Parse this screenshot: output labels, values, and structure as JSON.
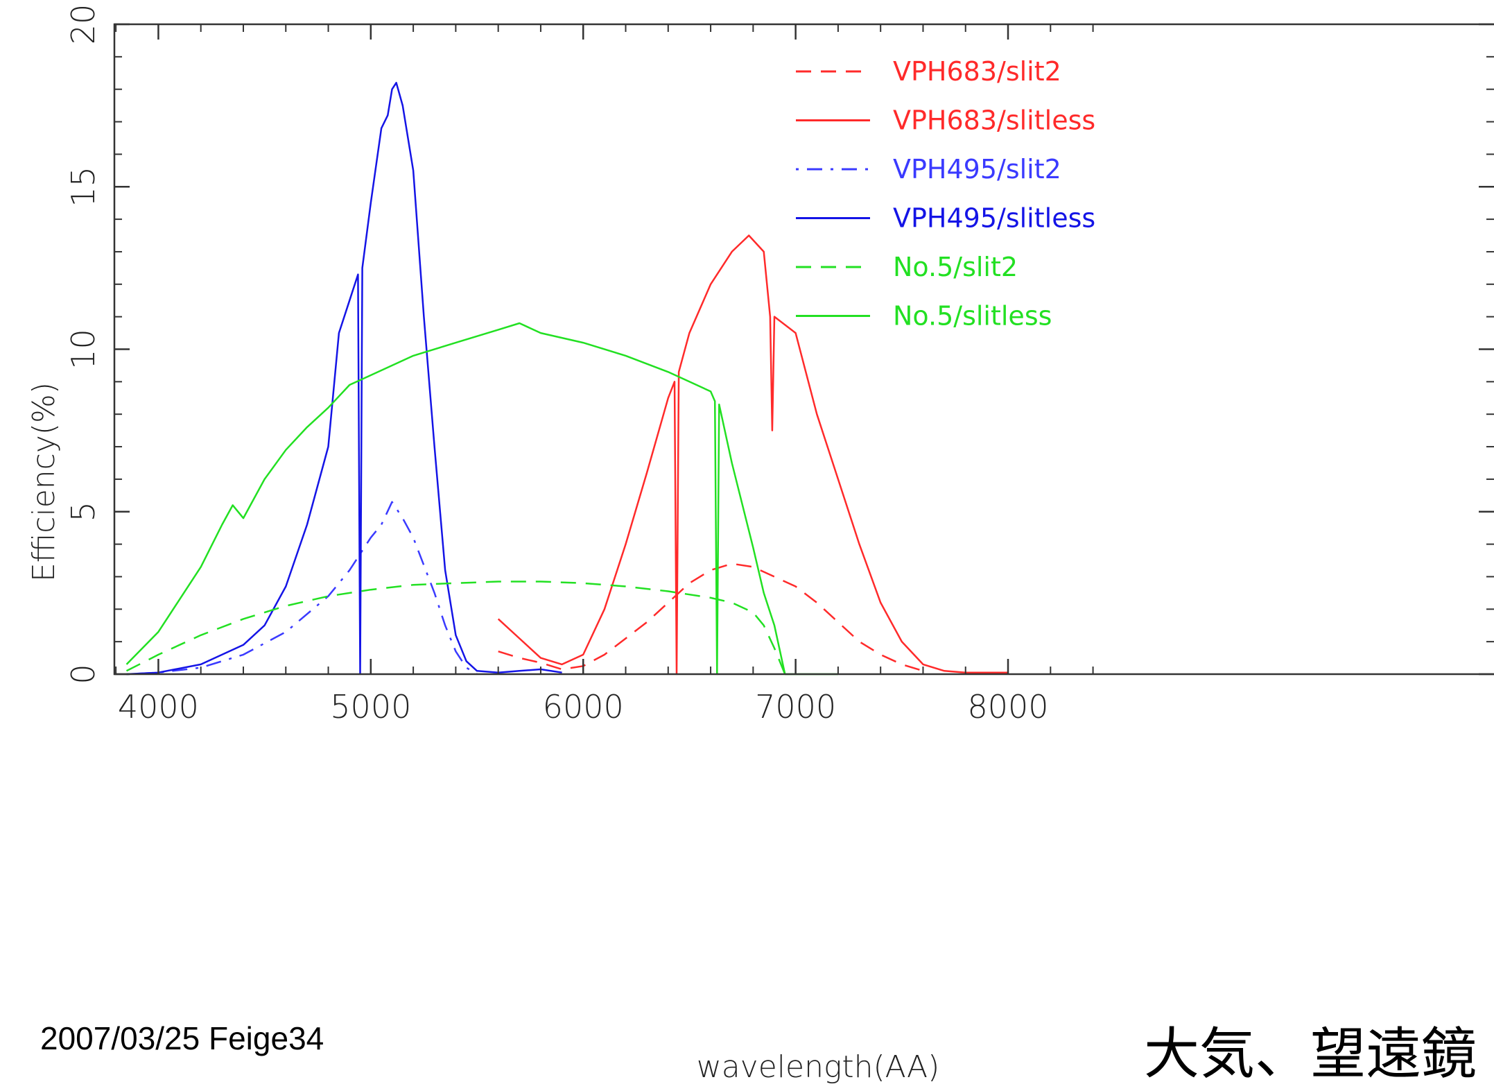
{
  "footer": {
    "date_label": "2007/03/25 Feige34",
    "jp_caption": "大気、望遠鏡"
  },
  "chart_data": {
    "type": "line",
    "xlabel": "wavelength(AA)",
    "ylabel": "Efficiency(%)",
    "xlim": [
      3800,
      8500
    ],
    "ylim": [
      0,
      20
    ],
    "xticks": [
      4000,
      5000,
      6000,
      7000,
      8000
    ],
    "yticks": [
      0,
      5,
      10,
      15,
      20
    ],
    "grid": false,
    "legend_position": "top-right",
    "series": [
      {
        "name": "VPH683/slit2",
        "color": "#ff2a2a",
        "dash": "dashed",
        "x": [
          5600,
          5700,
          5800,
          5850,
          5900,
          6000,
          6100,
          6200,
          6300,
          6400,
          6500,
          6600,
          6700,
          6800,
          6900,
          7000,
          7100,
          7200,
          7300,
          7400,
          7500,
          7600
        ],
        "y": [
          0.7,
          0.5,
          0.35,
          0.25,
          0.15,
          0.25,
          0.6,
          1.1,
          1.6,
          2.2,
          2.8,
          3.2,
          3.4,
          3.3,
          3.0,
          2.7,
          2.2,
          1.6,
          1.0,
          0.6,
          0.3,
          0.1
        ]
      },
      {
        "name": "VPH683/slitless",
        "color": "#ff2a2a",
        "dash": "solid",
        "x": [
          5600,
          5700,
          5800,
          5900,
          6000,
          6100,
          6200,
          6300,
          6400,
          6430,
          6440,
          6450,
          6500,
          6600,
          6700,
          6780,
          6850,
          6880,
          6890,
          6900,
          7000,
          7100,
          7200,
          7300,
          7400,
          7500,
          7600,
          7700,
          7800,
          7900,
          8000
        ],
        "y": [
          1.7,
          1.1,
          0.5,
          0.3,
          0.6,
          2.0,
          4.0,
          6.2,
          8.5,
          9.0,
          0.0,
          9.3,
          10.5,
          12.0,
          13.0,
          13.5,
          13.0,
          11.0,
          7.5,
          11.0,
          10.5,
          8.0,
          6.0,
          4.0,
          2.2,
          1.0,
          0.3,
          0.1,
          0.05,
          0.05,
          0.05
        ]
      },
      {
        "name": "VPH495/slit2",
        "color": "#3a3aff",
        "dash": "dashdot",
        "x": [
          3850,
          4000,
          4200,
          4400,
          4600,
          4800,
          4900,
          5000,
          5050,
          5100,
          5150,
          5200,
          5300,
          5350,
          5400,
          5450,
          5500
        ],
        "y": [
          0.0,
          0.05,
          0.2,
          0.6,
          1.3,
          2.4,
          3.2,
          4.2,
          4.6,
          5.3,
          4.8,
          4.2,
          2.5,
          1.5,
          0.7,
          0.2,
          0.0
        ]
      },
      {
        "name": "VPH495/slitless",
        "color": "#1414e6",
        "dash": "solid",
        "x": [
          3850,
          4000,
          4200,
          4400,
          4500,
          4600,
          4700,
          4800,
          4850,
          4900,
          4940,
          4950,
          4960,
          5000,
          5050,
          5080,
          5100,
          5120,
          5150,
          5200,
          5250,
          5300,
          5350,
          5400,
          5450,
          5500,
          5600,
          5700,
          5800,
          5900
        ],
        "y": [
          0.0,
          0.05,
          0.3,
          0.9,
          1.5,
          2.7,
          4.6,
          7.0,
          10.5,
          11.5,
          12.3,
          0.0,
          12.5,
          14.5,
          16.8,
          17.2,
          18.0,
          18.2,
          17.5,
          15.5,
          11.0,
          7.0,
          3.2,
          1.2,
          0.4,
          0.1,
          0.05,
          0.1,
          0.15,
          0.05
        ]
      },
      {
        "name": "No.5/slit2",
        "color": "#22e022",
        "dash": "dashed",
        "x": [
          3850,
          4000,
          4200,
          4400,
          4600,
          4800,
          5000,
          5200,
          5400,
          5600,
          5800,
          6000,
          6200,
          6400,
          6600,
          6700,
          6800,
          6850,
          6900,
          6950
        ],
        "y": [
          0.1,
          0.6,
          1.2,
          1.7,
          2.1,
          2.4,
          2.6,
          2.75,
          2.8,
          2.85,
          2.85,
          2.8,
          2.7,
          2.55,
          2.35,
          2.2,
          1.9,
          1.5,
          0.8,
          0.0
        ]
      },
      {
        "name": "No.5/slitless",
        "color": "#22e022",
        "dash": "solid",
        "x": [
          3850,
          4000,
          4100,
          4200,
          4300,
          4350,
          4400,
          4500,
          4600,
          4700,
          4800,
          4900,
          5000,
          5200,
          5400,
          5600,
          5700,
          5800,
          6000,
          6200,
          6400,
          6500,
          6600,
          6620,
          6630,
          6640,
          6700,
          6800,
          6850,
          6900,
          6950,
          7200
        ],
        "y": [
          0.3,
          1.3,
          2.3,
          3.3,
          4.6,
          5.2,
          4.8,
          6.0,
          6.9,
          7.6,
          8.2,
          8.9,
          9.2,
          9.8,
          10.2,
          10.6,
          10.8,
          10.5,
          10.2,
          9.8,
          9.3,
          9.0,
          8.7,
          8.4,
          0.0,
          8.3,
          6.5,
          3.9,
          2.5,
          1.5,
          0.0,
          0.0
        ]
      }
    ]
  }
}
